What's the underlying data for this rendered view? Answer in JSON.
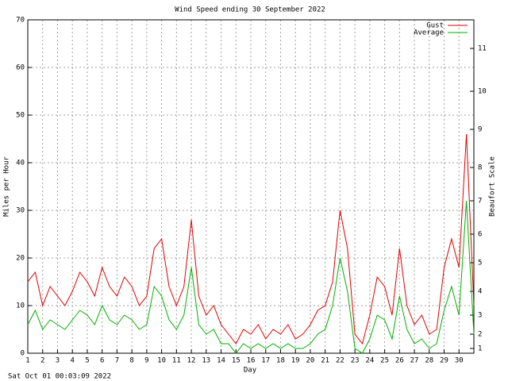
{
  "chart_data": {
    "type": "line",
    "title": "Wind Speed ending 30 September 2022",
    "ylabel": "Miles per Hour",
    "y2label": "Beaufort Scale",
    "xlabel": "Day",
    "footer": "Sat Oct 01 00:03:09 2022",
    "legend": "upper right",
    "grid": true,
    "xlim": [
      1,
      31
    ],
    "xticks": [
      1,
      2,
      3,
      4,
      5,
      6,
      7,
      8,
      9,
      10,
      11,
      12,
      13,
      14,
      15,
      16,
      17,
      18,
      19,
      20,
      21,
      22,
      23,
      24,
      25,
      26,
      27,
      28,
      29,
      30
    ],
    "ylim": [
      0,
      70
    ],
    "yticks": [
      0,
      10,
      20,
      30,
      40,
      50,
      60,
      70
    ],
    "y2lim": [
      0,
      70
    ],
    "y2ticks": [
      1,
      {
        "value": 4,
        "label": "2"
      },
      {
        "value": 8,
        "label": "3"
      },
      {
        "value": 13,
        "label": "4"
      },
      {
        "value": 19,
        "label": "5"
      },
      {
        "value": 25,
        "label": "6"
      },
      {
        "value": 32,
        "label": "7"
      },
      {
        "value": 39,
        "label": "8"
      },
      {
        "value": 47,
        "label": "9"
      },
      {
        "value": 55,
        "label": "10"
      },
      {
        "value": 64,
        "label": "11"
      }
    ],
    "x": [
      1,
      1.5,
      2,
      2.5,
      3,
      3.5,
      4,
      4.5,
      5,
      5.5,
      6,
      6.5,
      7,
      7.5,
      8,
      8.5,
      9,
      9.5,
      10,
      10.5,
      11,
      11.5,
      12,
      12.5,
      13,
      13.5,
      14,
      14.5,
      15,
      15.5,
      16,
      16.5,
      17,
      17.5,
      18,
      18.5,
      19,
      19.5,
      20,
      20.5,
      21,
      21.5,
      22,
      22.5,
      23,
      23.5,
      24,
      24.5,
      25,
      25.5,
      26,
      26.5,
      27,
      27.5,
      28,
      28.5,
      29,
      29.5,
      30,
      30.5,
      31
    ],
    "series": [
      {
        "name": "Gust",
        "color": "#e00000",
        "values": [
          15,
          17,
          10,
          14,
          12,
          10,
          13,
          17,
          15,
          12,
          18,
          14,
          12,
          16,
          14,
          10,
          12,
          22,
          24,
          14,
          10,
          14,
          28,
          12,
          8,
          10,
          6,
          4,
          2,
          5,
          4,
          6,
          3,
          5,
          4,
          6,
          3,
          4,
          6,
          9,
          10,
          15,
          30,
          22,
          4,
          2,
          8,
          16,
          14,
          8,
          22,
          10,
          6,
          8,
          4,
          5,
          18,
          24,
          18,
          46,
          10
        ]
      },
      {
        "name": "Average",
        "color": "#00b000",
        "values": [
          6,
          9,
          5,
          7,
          6,
          5,
          7,
          9,
          8,
          6,
          10,
          7,
          6,
          8,
          7,
          5,
          6,
          14,
          12,
          7,
          5,
          8,
          18,
          6,
          4,
          5,
          2,
          2,
          0,
          2,
          1,
          2,
          1,
          2,
          1,
          2,
          1,
          1,
          2,
          4,
          5,
          10,
          20,
          13,
          1,
          0,
          3,
          8,
          7,
          3,
          12,
          5,
          2,
          3,
          1,
          2,
          9,
          14,
          8,
          32,
          4
        ]
      }
    ]
  }
}
